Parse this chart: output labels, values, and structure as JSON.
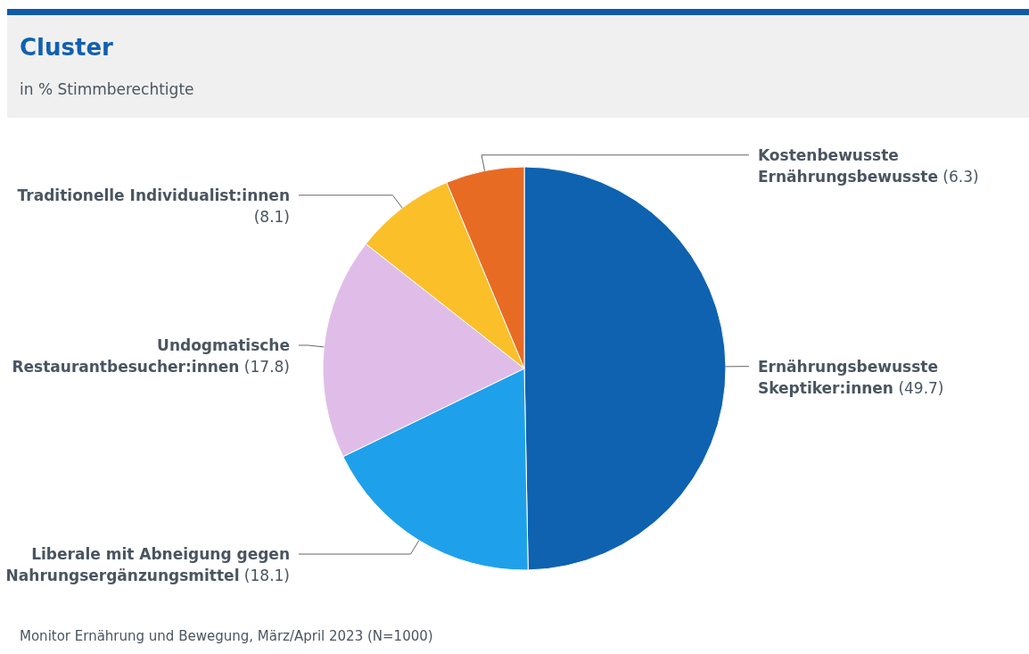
{
  "chart_data": {
    "type": "pie",
    "title": "Cluster",
    "subtitle": "in % Stimmberechtigte",
    "categories": [
      "Ernährungsbewusste Skeptiker:innen",
      "Liberale mit Abneigung gegen Nahrungsergänzungsmittel",
      "Undogmatische Restaurantbesucher:innen",
      "Traditionelle Individualist:innen",
      "Kostenbewusste Ernährungsbewusste"
    ],
    "values": [
      49.7,
      18.1,
      17.8,
      8.1,
      6.3
    ],
    "colors": [
      "#0e62b0",
      "#1ea1ea",
      "#e0bde8",
      "#fbbf2a",
      "#e86b24"
    ],
    "value_labels": [
      "(49.7)",
      "(18.1)",
      "(17.8)",
      "(8.1)",
      "(6.3)"
    ],
    "annotations": [
      "Monitor Ernährung und Bewegung, März/April 2023 (N=1000)"
    ]
  }
}
